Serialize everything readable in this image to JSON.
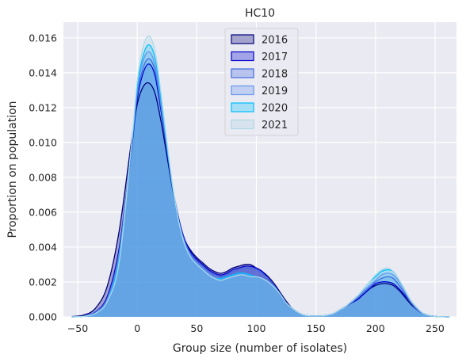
{
  "chart_data": {
    "type": "area",
    "title": "HC10",
    "xlabel": "Group size (number of isolates)",
    "ylabel": "Proportion on population",
    "xlim": [
      -62,
      268
    ],
    "ylim": [
      0,
      0.0169
    ],
    "x_ticks": [
      -50,
      0,
      50,
      100,
      150,
      200,
      250
    ],
    "y_ticks": [
      0.0,
      0.002,
      0.004,
      0.006,
      0.008,
      0.01,
      0.012,
      0.014,
      0.016
    ],
    "x_tick_labels": [
      "−50",
      "0",
      "50",
      "100",
      "150",
      "200",
      "250"
    ],
    "y_tick_labels": [
      "0.000",
      "0.002",
      "0.004",
      "0.006",
      "0.008",
      "0.010",
      "0.012",
      "0.014",
      "0.016"
    ],
    "grid": true,
    "legend_position": "top-center",
    "x": [
      -55,
      -45,
      -35,
      -25,
      -15,
      -5,
      0,
      5,
      10,
      15,
      20,
      25,
      30,
      35,
      40,
      45,
      50,
      55,
      60,
      65,
      70,
      75,
      80,
      85,
      90,
      95,
      100,
      105,
      110,
      115,
      120,
      125,
      130,
      135,
      140,
      145,
      150,
      155,
      160,
      165,
      170,
      175,
      180,
      185,
      190,
      195,
      200,
      205,
      210,
      215,
      220,
      225,
      230,
      235,
      240,
      245,
      250,
      255,
      262
    ],
    "series": [
      {
        "name": "2016",
        "color": "#00007a",
        "values": [
          2e-05,
          0.0001,
          0.0005,
          0.0018,
          0.005,
          0.01,
          0.0122,
          0.0132,
          0.0134,
          0.0128,
          0.0112,
          0.0092,
          0.0072,
          0.0055,
          0.0044,
          0.0038,
          0.0034,
          0.0031,
          0.0028,
          0.0026,
          0.0025,
          0.0026,
          0.0028,
          0.0029,
          0.003,
          0.003,
          0.0028,
          0.0026,
          0.0023,
          0.0019,
          0.0014,
          0.0009,
          0.0005,
          0.00025,
          0.0001,
          5e-05,
          5e-05,
          5e-05,
          0.0001,
          0.0002,
          0.0004,
          0.0006,
          0.0008,
          0.001,
          0.0013,
          0.0016,
          0.0018,
          0.0019,
          0.0019,
          0.0018,
          0.0015,
          0.0011,
          0.0007,
          0.0004,
          0.0002,
          8e-05,
          3e-05,
          1e-05,
          0.0
        ]
      },
      {
        "name": "2017",
        "color": "#0000cd",
        "values": [
          0.0,
          5e-05,
          0.0003,
          0.0012,
          0.004,
          0.0095,
          0.0125,
          0.014,
          0.0145,
          0.0138,
          0.0118,
          0.0095,
          0.0073,
          0.0056,
          0.0044,
          0.0037,
          0.0033,
          0.003,
          0.0027,
          0.0025,
          0.0024,
          0.0025,
          0.0027,
          0.0028,
          0.0029,
          0.0029,
          0.0028,
          0.0026,
          0.0022,
          0.0018,
          0.0013,
          0.0008,
          0.0005,
          0.00025,
          0.0001,
          5e-05,
          5e-05,
          5e-05,
          0.0001,
          0.0002,
          0.0004,
          0.0006,
          0.0008,
          0.001,
          0.0013,
          0.0016,
          0.0019,
          0.002,
          0.002,
          0.0019,
          0.0016,
          0.0012,
          0.0008,
          0.0004,
          0.0002,
          8e-05,
          3e-05,
          1e-05,
          0.0
        ]
      },
      {
        "name": "2018",
        "color": "#4169e1",
        "values": [
          0.0,
          4e-05,
          0.0003,
          0.0011,
          0.0038,
          0.0096,
          0.0127,
          0.0143,
          0.0148,
          0.0141,
          0.012,
          0.0096,
          0.0073,
          0.0055,
          0.0043,
          0.0036,
          0.0032,
          0.0029,
          0.0026,
          0.0024,
          0.0023,
          0.0024,
          0.0026,
          0.0027,
          0.0028,
          0.0028,
          0.0027,
          0.0025,
          0.0022,
          0.0018,
          0.0013,
          0.0008,
          0.0005,
          0.00025,
          0.0001,
          5e-05,
          5e-05,
          5e-05,
          0.0001,
          0.0002,
          0.0004,
          0.0006,
          0.0008,
          0.0011,
          0.0014,
          0.0017,
          0.002,
          0.0022,
          0.0023,
          0.0022,
          0.0018,
          0.0013,
          0.0008,
          0.0004,
          0.0002,
          8e-05,
          3e-05,
          1e-05,
          0.0
        ]
      },
      {
        "name": "2019",
        "color": "#6495ed",
        "values": [
          0.0,
          3e-05,
          0.0002,
          0.001,
          0.0036,
          0.0097,
          0.013,
          0.0147,
          0.0152,
          0.0144,
          0.0122,
          0.0097,
          0.0073,
          0.0054,
          0.0042,
          0.0035,
          0.0031,
          0.0028,
          0.0025,
          0.0023,
          0.0022,
          0.0023,
          0.0024,
          0.0025,
          0.0025,
          0.0024,
          0.0023,
          0.0022,
          0.002,
          0.0017,
          0.0013,
          0.0008,
          0.0005,
          0.00025,
          0.0001,
          5e-05,
          5e-05,
          5e-05,
          0.0001,
          0.0002,
          0.0004,
          0.0006,
          0.0009,
          0.0012,
          0.0015,
          0.0018,
          0.0021,
          0.0024,
          0.0025,
          0.0024,
          0.002,
          0.0014,
          0.0009,
          0.0005,
          0.0002,
          8e-05,
          3e-05,
          1e-05,
          0.0
        ]
      },
      {
        "name": "2020",
        "color": "#00bfff",
        "values": [
          0.0,
          3e-05,
          0.0002,
          0.0009,
          0.0034,
          0.0097,
          0.0132,
          0.015,
          0.0156,
          0.0148,
          0.0125,
          0.0098,
          0.0073,
          0.0054,
          0.0041,
          0.0034,
          0.003,
          0.0027,
          0.0024,
          0.0022,
          0.0022,
          0.0023,
          0.0024,
          0.0025,
          0.0025,
          0.0024,
          0.0023,
          0.0022,
          0.002,
          0.0017,
          0.0013,
          0.0008,
          0.0005,
          0.00025,
          0.0001,
          5e-05,
          5e-05,
          5e-05,
          0.0001,
          0.0002,
          0.0004,
          0.0006,
          0.0009,
          0.0012,
          0.0016,
          0.002,
          0.0023,
          0.0026,
          0.0027,
          0.0026,
          0.0021,
          0.0015,
          0.0009,
          0.0005,
          0.0002,
          8e-05,
          3e-05,
          1e-05,
          0.0
        ]
      },
      {
        "name": "2021",
        "color": "#add8e6",
        "values": [
          0.0,
          3e-05,
          0.0002,
          0.0009,
          0.0032,
          0.0098,
          0.0135,
          0.0155,
          0.0161,
          0.0152,
          0.0128,
          0.01,
          0.0074,
          0.0054,
          0.0041,
          0.0034,
          0.003,
          0.0027,
          0.0024,
          0.0022,
          0.0021,
          0.0022,
          0.0023,
          0.0024,
          0.0024,
          0.0023,
          0.0023,
          0.0022,
          0.002,
          0.0017,
          0.0013,
          0.0008,
          0.0005,
          0.00025,
          0.0001,
          5e-05,
          5e-05,
          5e-05,
          0.0001,
          0.0002,
          0.0004,
          0.0006,
          0.0009,
          0.0012,
          0.0016,
          0.002,
          0.0024,
          0.0027,
          0.0028,
          0.0026,
          0.0021,
          0.0015,
          0.0009,
          0.0005,
          0.0002,
          8e-05,
          3e-05,
          1e-05,
          0.0
        ]
      }
    ]
  }
}
